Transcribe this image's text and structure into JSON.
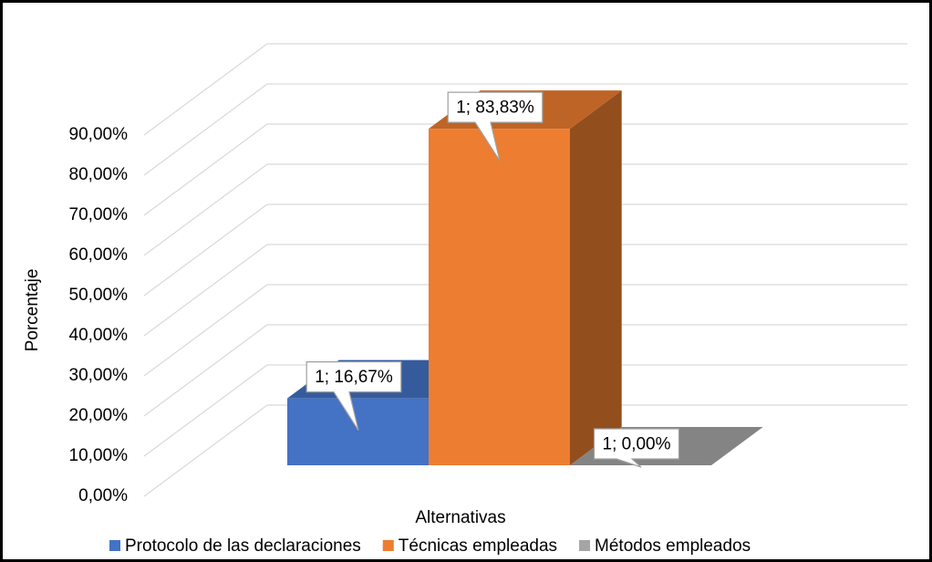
{
  "chart_data": {
    "type": "bar3d",
    "categories": [
      "1"
    ],
    "series": [
      {
        "name": "Protocolo de las declaraciones",
        "color": "#4472c4",
        "values": [
          16.67
        ],
        "value_labels": [
          "1; 16,67%"
        ]
      },
      {
        "name": "Técnicas empleadas",
        "color": "#ed7d31",
        "values": [
          83.83
        ],
        "value_labels": [
          "1; 83,83%"
        ]
      },
      {
        "name": "Métodos empleados",
        "color": "#a5a5a5",
        "values": [
          0
        ],
        "value_labels": [
          "1; 0,00%"
        ]
      }
    ],
    "xlabel": "Alternativas",
    "ylabel": "Porcentaje",
    "ylim": [
      0,
      90
    ],
    "yticks": [
      {
        "value": 0,
        "label": "0,00%"
      },
      {
        "value": 10,
        "label": "10,00%"
      },
      {
        "value": 20,
        "label": "20,00%"
      },
      {
        "value": 30,
        "label": "30,00%"
      },
      {
        "value": 40,
        "label": "40,00%"
      },
      {
        "value": 50,
        "label": "50,00%"
      },
      {
        "value": 60,
        "label": "60,00%"
      },
      {
        "value": 70,
        "label": "70,00%"
      },
      {
        "value": 80,
        "label": "80,00%"
      },
      {
        "value": 90,
        "label": "90,00%"
      }
    ],
    "grid": true,
    "legend": "bottom"
  }
}
